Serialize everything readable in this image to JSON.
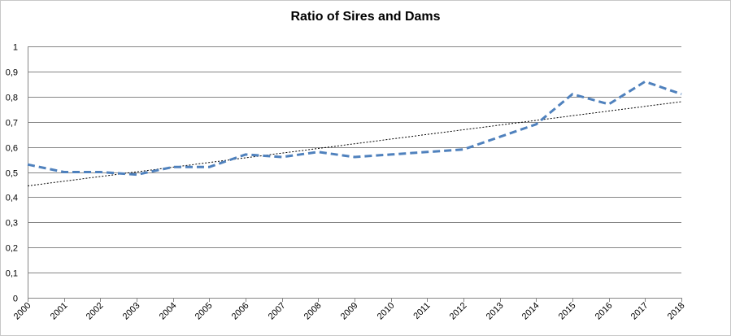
{
  "chart_data": {
    "type": "line",
    "title": "Ratio of Sires and Dams",
    "xlabel": "",
    "ylabel": "",
    "categories": [
      "2000",
      "2001",
      "2002",
      "2003",
      "2004",
      "2005",
      "2006",
      "2007",
      "2008",
      "2009",
      "2010",
      "2011",
      "2012",
      "2013",
      "2014",
      "2015",
      "2016",
      "2017",
      "2018"
    ],
    "ylim": [
      0,
      1
    ],
    "y_ticks": [
      "0",
      "0,1",
      "0,2",
      "0,3",
      "0,4",
      "0,5",
      "0,6",
      "0,7",
      "0,8",
      "0,9",
      "1"
    ],
    "series": [
      {
        "values": [
          0.53,
          0.5,
          0.5,
          0.49,
          0.52,
          0.52,
          0.57,
          0.56,
          0.58,
          0.56,
          0.57,
          0.58,
          0.59,
          0.64,
          0.69,
          0.81,
          0.77,
          0.86,
          0.81
        ],
        "color": "#4f81bd",
        "style": "dashed"
      }
    ],
    "trendline": {
      "type": "linear",
      "start": 0.445,
      "end": 0.78,
      "color": "#000000",
      "style": "dotted"
    },
    "grid": true,
    "legend": "none"
  }
}
